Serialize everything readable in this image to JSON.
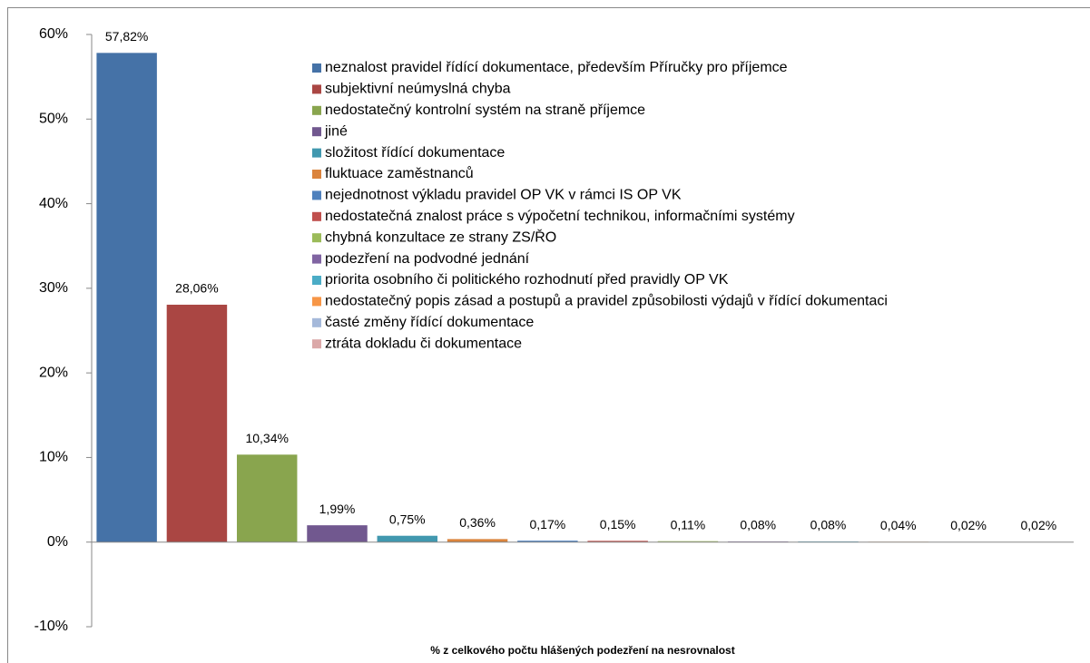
{
  "chart_data": {
    "type": "bar",
    "x_label": "% z celkového počtu hlášených podezření na nesrovnalost",
    "categories": [
      null
    ],
    "series": [
      {
        "name": "neznalost pravidel řídící dokumentace, především Příručky pro příjemce",
        "color": "#4572a7",
        "values": [
          57.82
        ],
        "value_labels": [
          "57,82%"
        ]
      },
      {
        "name": "subjektivní neúmyslná chyba",
        "color": "#aa4643",
        "values": [
          28.06
        ],
        "value_labels": [
          "28,06%"
        ]
      },
      {
        "name": "nedostatečný kontrolní systém na straně příjemce",
        "color": "#89a54e",
        "values": [
          10.34
        ],
        "value_labels": [
          "10,34%"
        ]
      },
      {
        "name": "jiné",
        "color": "#71588f",
        "values": [
          1.99
        ],
        "value_labels": [
          "1,99%"
        ]
      },
      {
        "name": "složitost řídící dokumentace",
        "color": "#4198af",
        "values": [
          0.75
        ],
        "value_labels": [
          "0,75%"
        ]
      },
      {
        "name": "fluktuace zaměstnanců",
        "color": "#db843d",
        "values": [
          0.36
        ],
        "value_labels": [
          "0,36%"
        ]
      },
      {
        "name": "nejednotnost výkladu pravidel OP VK v rámci IS OP VK",
        "color": "#4f81bd",
        "values": [
          0.17
        ],
        "value_labels": [
          "0,17%"
        ]
      },
      {
        "name": "nedostatečná znalost práce s výpočetní technikou, informačními systémy",
        "color": "#c0504d",
        "values": [
          0.15
        ],
        "value_labels": [
          "0,15%"
        ]
      },
      {
        "name": "chybná konzultace ze strany ZS/ŘO",
        "color": "#9bbb59",
        "values": [
          0.11
        ],
        "value_labels": [
          "0,11%"
        ]
      },
      {
        "name": "podezření na podvodné jednání",
        "color": "#8064a2",
        "values": [
          0.08
        ],
        "value_labels": [
          "0,08%"
        ]
      },
      {
        "name": "priorita osobního či politického rozhodnutí před pravidly OP VK",
        "color": "#4bacc6",
        "values": [
          0.08
        ],
        "value_labels": [
          "0,08%"
        ]
      },
      {
        "name": "nedostatečný popis zásad a postupů a pravidel způsobilosti výdajů v řídící dokumentaci",
        "color": "#f79646",
        "values": [
          0.04
        ],
        "value_labels": [
          "0,04%"
        ]
      },
      {
        "name": "časté změny řídící dokumentace",
        "color": "#a5b9da",
        "values": [
          0.02
        ],
        "value_labels": [
          "0,02%"
        ]
      },
      {
        "name": "ztráta dokladu či dokumentace",
        "color": "#dba8a8",
        "values": [
          0.02
        ],
        "value_labels": [
          "0,02%"
        ]
      }
    ],
    "ylim": [
      -10,
      60
    ],
    "yticks": [
      {
        "value": -10,
        "label": "-10%"
      },
      {
        "value": 0,
        "label": "0%"
      },
      {
        "value": 10,
        "label": "10%"
      },
      {
        "value": 20,
        "label": "20%"
      },
      {
        "value": 30,
        "label": "30%"
      },
      {
        "value": 40,
        "label": "40%"
      },
      {
        "value": 50,
        "label": "50%"
      },
      {
        "value": 60,
        "label": "60%"
      }
    ],
    "legend": "top-right"
  }
}
